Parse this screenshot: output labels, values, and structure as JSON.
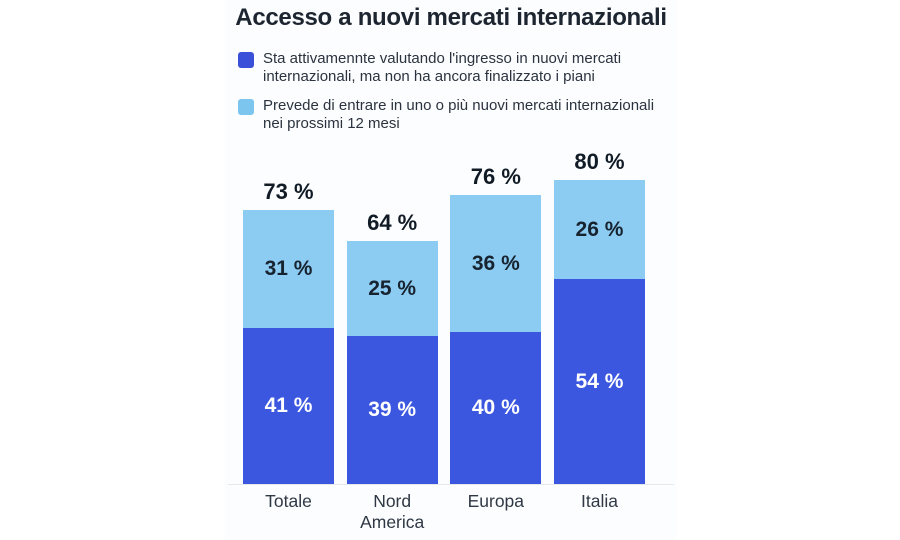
{
  "title": "Accesso a nuovi mercati internazionali",
  "colors": {
    "dark_blue_bar": "#3B57E0",
    "light_blue_bar": "#8CCBF2",
    "legend_dark_swatch": "#3A50D8",
    "legend_light_swatch": "#7CC5EF",
    "title_text": "#1c2530",
    "total_label_text": "#111b26",
    "light_segment_label_text": "#17232F",
    "dark_segment_label_text": "#FFFFFF",
    "baseline": "#e7e8ec"
  },
  "legend": [
    {
      "label": "Sta attivamennte valutando l'ingresso in nuovi mercati internazionali, ma non ha ancora finalizzato i piani",
      "color": "#3A50D8"
    },
    {
      "label": "Prevede di entrare in uno o più nuovi mercati internazionali nei prossimi 12 mesi",
      "color": "#7CC5EF"
    }
  ],
  "chart_data": {
    "type": "bar",
    "stacked": true,
    "title": "Accesso a nuovi mercati internazionali",
    "categories": [
      "Totale",
      "Nord America",
      "Europa",
      "Italia"
    ],
    "series": [
      {
        "name": "Sta attivamennte valutando l'ingresso in nuovi mercati internazionali, ma non ha ancora finalizzato i piani",
        "values": [
          41,
          39,
          40,
          54
        ],
        "labels": [
          "41 %",
          "39 %",
          "40 %",
          "54 %"
        ],
        "color": "#3B57E0",
        "label_color": "#FFFFFF"
      },
      {
        "name": "Prevede di entrare in uno o più nuovi mercati internazionali nei prossimi 12 mesi",
        "values": [
          31,
          25,
          36,
          26
        ],
        "labels": [
          "31 %",
          "25 %",
          "36 %",
          "26 %"
        ],
        "color": "#8CCBF2",
        "label_color": "#17232F"
      }
    ],
    "totals": [
      73,
      64,
      76,
      80
    ],
    "total_labels": [
      "73 %",
      "64 %",
      "76 %",
      "80 %"
    ],
    "value_unit": "%",
    "ylim": [
      0,
      100
    ],
    "grid": false,
    "legend_position": "top-left"
  }
}
